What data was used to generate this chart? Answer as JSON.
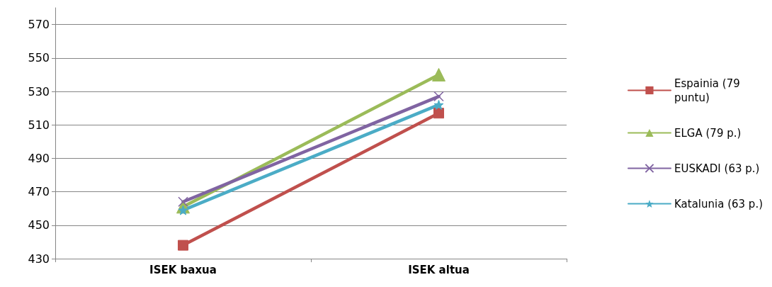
{
  "chart_data": {
    "type": "line",
    "categories": [
      "ISEK baxua",
      "ISEK altua"
    ],
    "series": [
      {
        "name": "Espainia (79 puntu)",
        "color": "#c0504d",
        "marker": "square",
        "values": [
          438,
          517
        ]
      },
      {
        "name": "ELGA (79 p.)",
        "color": "#9bbb59",
        "marker": "triangle",
        "values": [
          461,
          540
        ]
      },
      {
        "name": "EUSKADI (63 p.)",
        "color": "#8064a2",
        "marker": "cross",
        "values": [
          464,
          527
        ]
      },
      {
        "name": "Katalunia (63 p.)",
        "color": "#4bacc6",
        "marker": "star",
        "values": [
          459,
          522
        ]
      }
    ],
    "ylim": [
      430,
      580
    ],
    "yticks": [
      430,
      450,
      470,
      490,
      510,
      530,
      550,
      570
    ],
    "grid": "y",
    "legend": "right",
    "line_style": "solid"
  }
}
